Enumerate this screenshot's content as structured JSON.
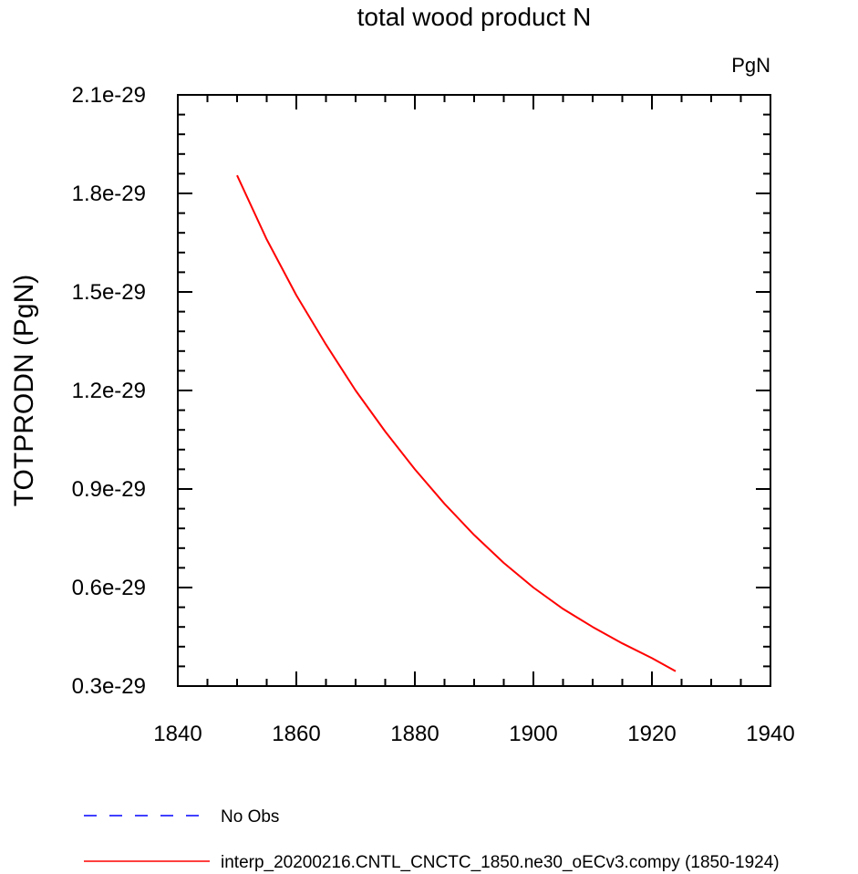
{
  "chart_data": {
    "type": "line",
    "title": "total wood product N",
    "units_label": "PgN",
    "ylabel": "TOTPRODN  (PgN)",
    "xlabel": "",
    "xlim": [
      1840,
      1940
    ],
    "ylim": [
      3e-30,
      2.1e-29
    ],
    "x_ticks": [
      1840,
      1860,
      1880,
      1900,
      1920,
      1940
    ],
    "x_tick_labels": [
      "1840",
      "1860",
      "1880",
      "1900",
      "1920",
      "1940"
    ],
    "y_ticks": [
      3e-30,
      6e-30,
      9e-30,
      1.2e-29,
      1.5e-29,
      1.8e-29,
      2.1e-29
    ],
    "y_tick_labels": [
      "0.3e-29",
      "0.6e-29",
      "0.9e-29",
      "1.2e-29",
      "1.5e-29",
      "1.8e-29",
      "2.1e-29"
    ],
    "grid": false,
    "legend_position": "bottom",
    "series": [
      {
        "name": "interp_20200216.CNTL_CNCTC_1850.ne30_oECv3.compy (1850-1924)",
        "color": "#ff0000",
        "dash": "solid",
        "x": [
          1850,
          1855,
          1860,
          1865,
          1870,
          1875,
          1880,
          1885,
          1890,
          1895,
          1900,
          1905,
          1910,
          1915,
          1920,
          1924
        ],
        "values": [
          1.855e-29,
          1.66e-29,
          1.49e-29,
          1.34e-29,
          1.2e-29,
          1.075e-29,
          9.6e-30,
          8.55e-30,
          7.6e-30,
          6.75e-30,
          6e-30,
          5.35e-30,
          4.8e-30,
          4.3e-30,
          3.85e-30,
          3.45e-30
        ]
      }
    ],
    "legend": [
      {
        "name": "No Obs",
        "color": "#0000ff",
        "dash": "dashed"
      },
      {
        "name": "interp_20200216.CNTL_CNCTC_1850.ne30_oECv3.compy (1850-1924)",
        "color": "#ff0000",
        "dash": "solid"
      }
    ]
  }
}
